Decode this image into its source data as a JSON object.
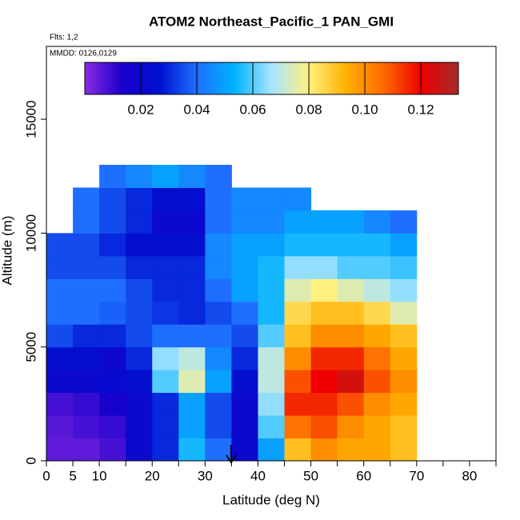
{
  "chart_data": {
    "type": "heatmap",
    "title": "ATOM2 Northeast_Pacific_1 PAN_GMI",
    "subtitle": "Flts: 1,2",
    "annotation": "MMDD: 0126,0129",
    "xlabel": "Latitude (deg N)",
    "ylabel": "Altitude (m)",
    "xlim": [
      0,
      85
    ],
    "ylim": [
      0,
      18200
    ],
    "xticks": [
      0,
      5,
      10,
      {
        "value": 15,
        "label": null
      },
      20,
      {
        "value": 25,
        "label": null
      },
      30,
      {
        "value": 35,
        "label": null
      },
      40,
      {
        "value": 45,
        "label": null
      },
      50,
      {
        "value": 55,
        "label": null
      },
      60,
      {
        "value": 65,
        "label": null
      },
      70,
      {
        "value": 75,
        "label": null
      },
      80,
      {
        "value": 85,
        "label": null
      }
    ],
    "yticks": [
      0,
      5000,
      10000,
      15000
    ],
    "x_edges": [
      0,
      5,
      10,
      15,
      20,
      25,
      30,
      35,
      40,
      45,
      50,
      55,
      60,
      65,
      70,
      75
    ],
    "y_edges": [
      0,
      1000,
      2000,
      3000,
      4000,
      5000,
      6000,
      7000,
      8000,
      9000,
      10000,
      11000,
      12000,
      13000
    ],
    "z": [
      [
        0.005,
        0.005,
        0.008,
        0.02,
        0.03,
        0.055,
        0.04,
        0.02,
        0.05,
        0.09,
        0.1,
        0.095,
        0.095,
        0.09,
        null
      ],
      [
        0.006,
        0.008,
        0.01,
        0.02,
        0.03,
        0.05,
        0.035,
        0.02,
        0.06,
        0.105,
        0.11,
        0.1,
        0.095,
        0.09,
        null
      ],
      [
        0.008,
        0.01,
        0.015,
        0.02,
        0.03,
        0.05,
        0.035,
        0.02,
        0.065,
        0.115,
        0.115,
        0.11,
        0.1,
        0.095,
        null
      ],
      [
        0.02,
        0.02,
        0.022,
        0.025,
        0.06,
        0.075,
        0.05,
        0.025,
        0.07,
        0.11,
        0.12,
        0.125,
        0.11,
        0.1,
        null
      ],
      [
        0.025,
        0.025,
        0.02,
        0.03,
        0.065,
        0.07,
        0.045,
        0.03,
        0.07,
        0.1,
        0.115,
        0.115,
        0.105,
        0.095,
        null
      ],
      [
        0.035,
        0.03,
        0.03,
        0.035,
        0.04,
        0.04,
        0.04,
        0.035,
        0.06,
        0.09,
        0.1,
        0.1,
        0.095,
        0.09,
        null
      ],
      [
        0.04,
        0.04,
        0.038,
        0.035,
        0.032,
        0.03,
        0.035,
        0.04,
        0.055,
        0.085,
        0.09,
        0.09,
        0.085,
        0.075,
        null
      ],
      [
        0.04,
        0.04,
        0.04,
        0.035,
        0.03,
        0.03,
        0.04,
        0.05,
        0.055,
        0.075,
        0.08,
        0.075,
        0.07,
        0.065,
        null
      ],
      [
        0.035,
        0.035,
        0.035,
        0.03,
        0.03,
        0.03,
        0.045,
        0.05,
        0.055,
        0.065,
        0.065,
        0.06,
        0.06,
        0.058,
        null
      ],
      [
        0.035,
        0.035,
        0.03,
        0.025,
        0.025,
        0.025,
        0.045,
        0.05,
        0.05,
        0.055,
        0.055,
        0.055,
        0.055,
        0.05,
        null
      ],
      [
        null,
        0.04,
        0.035,
        0.03,
        0.02,
        0.02,
        0.04,
        0.045,
        0.045,
        0.05,
        0.05,
        0.05,
        0.045,
        0.04,
        null
      ],
      [
        null,
        0.04,
        0.035,
        0.03,
        0.025,
        0.025,
        0.04,
        0.045,
        0.045,
        0.045,
        null,
        null,
        null,
        null,
        null
      ],
      [
        null,
        null,
        0.04,
        0.045,
        0.05,
        0.045,
        0.04,
        null,
        null,
        null,
        null,
        null,
        null,
        null,
        null
      ]
    ],
    "colorbar": {
      "lim": [
        0,
        0.1334
      ],
      "ticks": [
        0.02,
        0.04,
        0.06,
        0.08,
        {
          "value": 0.1,
          "label": "0.10"
        },
        0.12
      ],
      "colors": [
        "#8a2be2",
        "#1a00cc",
        "#0010d0",
        "#1e6fff",
        "#00b2ff",
        "#a8e4ff",
        "#fff080",
        "#ffb000",
        "#ff6a00",
        "#ee0000",
        "#a52a2a"
      ]
    }
  }
}
